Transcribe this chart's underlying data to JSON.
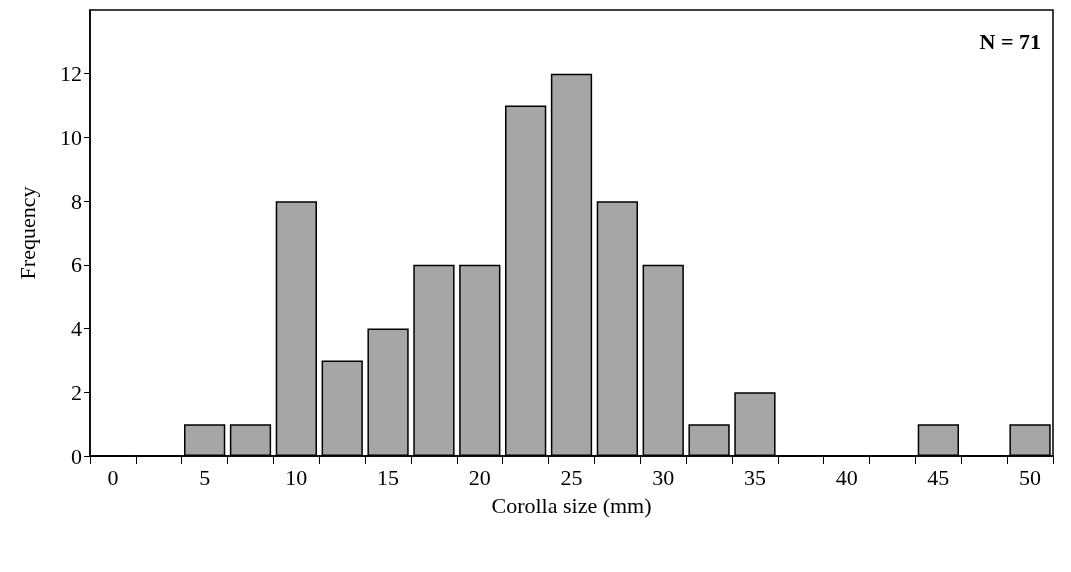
{
  "chart_data": {
    "type": "bar",
    "xlabel": "Corolla size (mm)",
    "ylabel": "Frequency",
    "categories": [
      "0",
      null,
      "5",
      null,
      "10",
      null,
      "15",
      null,
      "20",
      null,
      "25",
      null,
      "30",
      null,
      "35",
      null,
      "40",
      null,
      "45",
      null,
      "50"
    ],
    "values": [
      0,
      0,
      1,
      1,
      8,
      3,
      4,
      6,
      6,
      11,
      12,
      8,
      6,
      1,
      2,
      0,
      0,
      0,
      1,
      0,
      1
    ],
    "color": "#a6a6a6",
    "ylim": [
      0,
      14
    ],
    "yticks": [
      0,
      2,
      4,
      6,
      8,
      10,
      12
    ],
    "annotations": [
      "N = 71"
    ]
  }
}
